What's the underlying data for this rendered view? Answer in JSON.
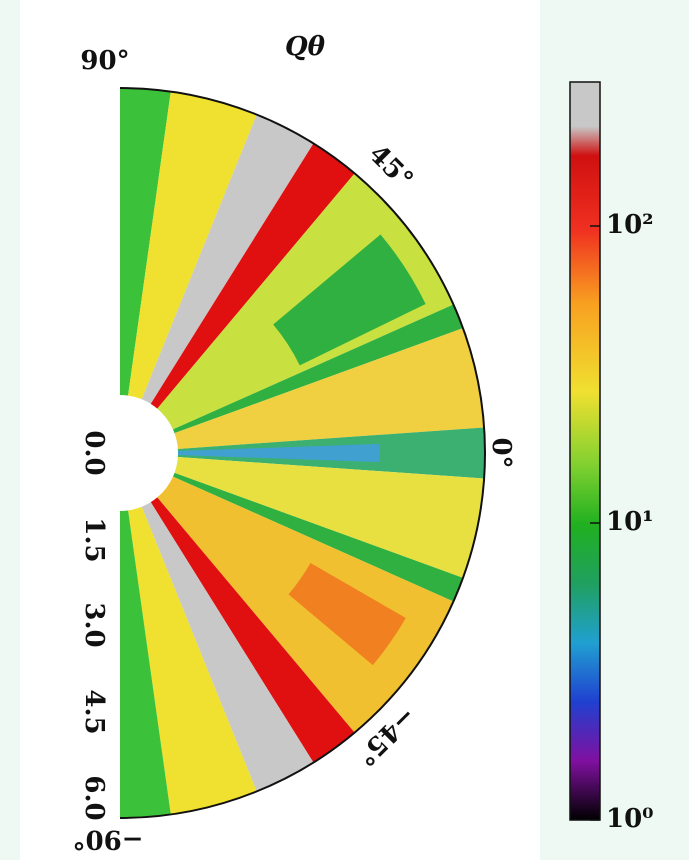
{
  "figure": {
    "title": "Qθ",
    "angle_labels": [
      "90°",
      "45°",
      "0°",
      "−45°",
      "−90°"
    ],
    "radius_labels": [
      "0.0",
      "1.5",
      "3.0",
      "4.5",
      "6.0"
    ],
    "colorbar": {
      "scale": "log",
      "ticks": [
        {
          "value": 1,
          "label": "10⁰"
        },
        {
          "value": 10,
          "label": "10¹"
        },
        {
          "value": 100,
          "label": "10²"
        }
      ]
    }
  }
}
